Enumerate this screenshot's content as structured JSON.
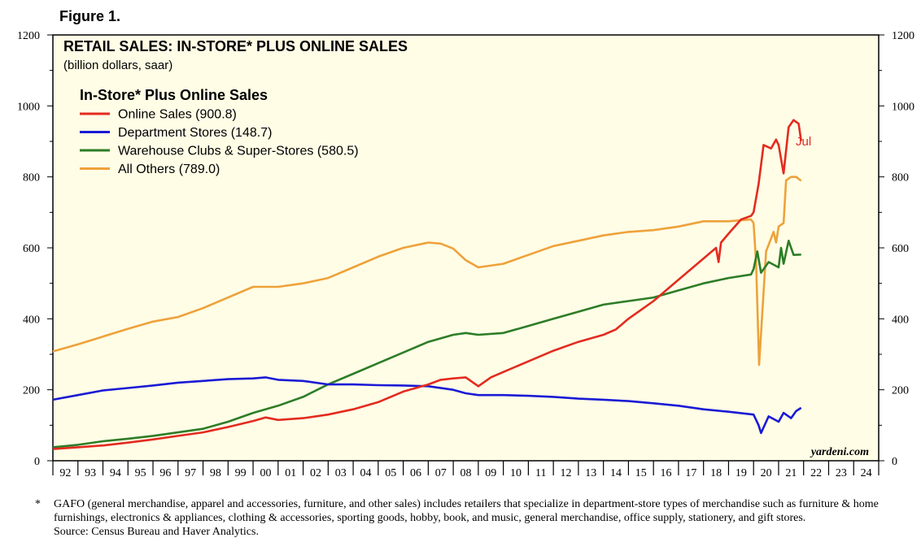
{
  "figure_label": "Figure 1.",
  "chart_data": {
    "type": "line",
    "title": "RETAIL SALES: IN-STORE* PLUS ONLINE SALES",
    "subtitle": "(billion dollars, saar)",
    "legend_title": "In-Store* Plus Online Sales",
    "legend_placement": "top-left",
    "ylim": [
      0,
      1200
    ],
    "y_ticks": [
      "0",
      "200",
      "400",
      "600",
      "800",
      "1000",
      "1200"
    ],
    "x_range": [
      1992,
      2025
    ],
    "x_ticks": [
      "92",
      "93",
      "94",
      "95",
      "96",
      "97",
      "98",
      "99",
      "00",
      "01",
      "02",
      "03",
      "04",
      "05",
      "06",
      "07",
      "08",
      "09",
      "10",
      "11",
      "12",
      "13",
      "14",
      "15",
      "16",
      "17",
      "18",
      "19",
      "20",
      "21",
      "22",
      "23",
      "24"
    ],
    "grid": false,
    "background": "#fffde6",
    "annotation": "Jul",
    "watermark": "yardeni.com",
    "series": [
      {
        "name": "Online Sales (900.8)",
        "color": "#e32b1f",
        "points": [
          [
            1992.0,
            33
          ],
          [
            1993.0,
            38
          ],
          [
            1994.0,
            43
          ],
          [
            1995.0,
            51
          ],
          [
            1996.0,
            60
          ],
          [
            1997.0,
            70
          ],
          [
            1998.0,
            80
          ],
          [
            1999.0,
            95
          ],
          [
            2000.0,
            112
          ],
          [
            2000.5,
            122
          ],
          [
            2001.0,
            115
          ],
          [
            2002.0,
            120
          ],
          [
            2003.0,
            130
          ],
          [
            2004.0,
            145
          ],
          [
            2005.0,
            165
          ],
          [
            2006.0,
            195
          ],
          [
            2007.0,
            215
          ],
          [
            2007.5,
            228
          ],
          [
            2008.0,
            232
          ],
          [
            2008.5,
            235
          ],
          [
            2009.0,
            210
          ],
          [
            2009.5,
            235
          ],
          [
            2010.0,
            250
          ],
          [
            2011.0,
            280
          ],
          [
            2012.0,
            310
          ],
          [
            2013.0,
            335
          ],
          [
            2014.0,
            355
          ],
          [
            2014.5,
            370
          ],
          [
            2015.0,
            400
          ],
          [
            2016.0,
            450
          ],
          [
            2017.0,
            510
          ],
          [
            2018.0,
            570
          ],
          [
            2018.5,
            600
          ],
          [
            2018.6,
            560
          ],
          [
            2018.7,
            615
          ],
          [
            2019.0,
            640
          ],
          [
            2019.5,
            680
          ],
          [
            2019.9,
            690
          ],
          [
            2020.0,
            700
          ],
          [
            2020.2,
            780
          ],
          [
            2020.4,
            890
          ],
          [
            2020.7,
            880
          ],
          [
            2020.9,
            905
          ],
          [
            2021.0,
            890
          ],
          [
            2021.2,
            810
          ],
          [
            2021.4,
            940
          ],
          [
            2021.6,
            960
          ],
          [
            2021.8,
            950
          ],
          [
            2021.9,
            901
          ]
        ]
      },
      {
        "name": "Department Stores (148.7)",
        "color": "#1a1ad6",
        "points": [
          [
            1992.0,
            172
          ],
          [
            1993.0,
            185
          ],
          [
            1994.0,
            198
          ],
          [
            1995.0,
            205
          ],
          [
            1996.0,
            212
          ],
          [
            1997.0,
            220
          ],
          [
            1998.0,
            225
          ],
          [
            1999.0,
            230
          ],
          [
            2000.0,
            232
          ],
          [
            2000.5,
            235
          ],
          [
            2001.0,
            228
          ],
          [
            2002.0,
            225
          ],
          [
            2003.0,
            215
          ],
          [
            2004.0,
            215
          ],
          [
            2005.0,
            213
          ],
          [
            2006.0,
            212
          ],
          [
            2007.0,
            210
          ],
          [
            2008.0,
            200
          ],
          [
            2008.5,
            190
          ],
          [
            2009.0,
            185
          ],
          [
            2010.0,
            185
          ],
          [
            2011.0,
            183
          ],
          [
            2012.0,
            180
          ],
          [
            2013.0,
            175
          ],
          [
            2014.0,
            172
          ],
          [
            2015.0,
            168
          ],
          [
            2016.0,
            162
          ],
          [
            2017.0,
            155
          ],
          [
            2018.0,
            145
          ],
          [
            2019.0,
            138
          ],
          [
            2020.0,
            130
          ],
          [
            2020.2,
            100
          ],
          [
            2020.3,
            78
          ],
          [
            2020.6,
            125
          ],
          [
            2021.0,
            110
          ],
          [
            2021.2,
            135
          ],
          [
            2021.5,
            120
          ],
          [
            2021.7,
            140
          ],
          [
            2021.9,
            149
          ]
        ]
      },
      {
        "name": "Warehouse Clubs & Super-Stores (580.5)",
        "color": "#2d7d27",
        "points": [
          [
            1992.0,
            38
          ],
          [
            1993.0,
            45
          ],
          [
            1994.0,
            55
          ],
          [
            1995.0,
            62
          ],
          [
            1996.0,
            70
          ],
          [
            1997.0,
            80
          ],
          [
            1998.0,
            90
          ],
          [
            1999.0,
            110
          ],
          [
            2000.0,
            135
          ],
          [
            2001.0,
            155
          ],
          [
            2002.0,
            180
          ],
          [
            2003.0,
            215
          ],
          [
            2004.0,
            245
          ],
          [
            2005.0,
            275
          ],
          [
            2006.0,
            305
          ],
          [
            2007.0,
            335
          ],
          [
            2008.0,
            355
          ],
          [
            2008.5,
            360
          ],
          [
            2009.0,
            355
          ],
          [
            2010.0,
            360
          ],
          [
            2011.0,
            380
          ],
          [
            2012.0,
            400
          ],
          [
            2013.0,
            420
          ],
          [
            2014.0,
            440
          ],
          [
            2015.0,
            450
          ],
          [
            2016.0,
            460
          ],
          [
            2017.0,
            480
          ],
          [
            2018.0,
            500
          ],
          [
            2019.0,
            515
          ],
          [
            2019.9,
            525
          ],
          [
            2020.0,
            540
          ],
          [
            2020.15,
            590
          ],
          [
            2020.3,
            530
          ],
          [
            2020.6,
            560
          ],
          [
            2021.0,
            545
          ],
          [
            2021.1,
            600
          ],
          [
            2021.2,
            555
          ],
          [
            2021.4,
            620
          ],
          [
            2021.6,
            580
          ],
          [
            2021.9,
            581
          ]
        ]
      },
      {
        "name": "All Others (789.0)",
        "color": "#eea23a",
        "points": [
          [
            1992.0,
            308
          ],
          [
            1993.0,
            328
          ],
          [
            1994.0,
            350
          ],
          [
            1995.0,
            372
          ],
          [
            1996.0,
            392
          ],
          [
            1997.0,
            405
          ],
          [
            1998.0,
            430
          ],
          [
            1999.0,
            460
          ],
          [
            2000.0,
            490
          ],
          [
            2001.0,
            490
          ],
          [
            2002.0,
            500
          ],
          [
            2003.0,
            515
          ],
          [
            2004.0,
            545
          ],
          [
            2005.0,
            575
          ],
          [
            2006.0,
            600
          ],
          [
            2007.0,
            615
          ],
          [
            2007.5,
            612
          ],
          [
            2008.0,
            598
          ],
          [
            2008.5,
            565
          ],
          [
            2009.0,
            545
          ],
          [
            2010.0,
            555
          ],
          [
            2011.0,
            580
          ],
          [
            2012.0,
            605
          ],
          [
            2013.0,
            620
          ],
          [
            2014.0,
            635
          ],
          [
            2015.0,
            645
          ],
          [
            2016.0,
            650
          ],
          [
            2017.0,
            660
          ],
          [
            2018.0,
            675
          ],
          [
            2019.0,
            675
          ],
          [
            2019.9,
            680
          ],
          [
            2020.0,
            670
          ],
          [
            2020.1,
            560
          ],
          [
            2020.22,
            270
          ],
          [
            2020.5,
            590
          ],
          [
            2020.8,
            645
          ],
          [
            2020.9,
            615
          ],
          [
            2021.0,
            660
          ],
          [
            2021.2,
            670
          ],
          [
            2021.3,
            790
          ],
          [
            2021.5,
            800
          ],
          [
            2021.7,
            800
          ],
          [
            2021.9,
            789
          ]
        ]
      }
    ]
  },
  "footnote": {
    "star": "*",
    "text": "GAFO (general merchandise, apparel and accessories, furniture, and other sales) includes retailers that specialize in department-store types of merchandise such as furniture & home furnishings, electronics & appliances, clothing & accessories, sporting goods, hobby, book, and music, general merchandise, office supply, stationery, and gift stores.",
    "source": "Source: Census Bureau and Haver Analytics."
  }
}
